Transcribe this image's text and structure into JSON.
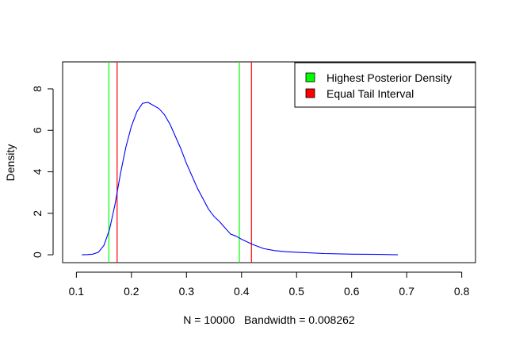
{
  "chart_data": {
    "type": "line",
    "title": "",
    "xlabel": "N = 10000   Bandwidth = 0.008262",
    "ylabel": "Density",
    "xlim": [
      0.075,
      0.825
    ],
    "ylim": [
      -0.38,
      9.3
    ],
    "xticks": [
      0.1,
      0.2,
      0.3,
      0.4,
      0.5,
      0.6,
      0.7,
      0.8
    ],
    "xtick_labels": [
      "0.1",
      "0.2",
      "0.3",
      "0.4",
      "0.5",
      "0.6",
      "0.7",
      "0.8"
    ],
    "yticks": [
      0,
      2,
      4,
      6,
      8
    ],
    "ytick_labels": [
      "0",
      "2",
      "4",
      "6",
      "8"
    ],
    "grid": false,
    "legend_position": "top-right",
    "series": [
      {
        "color": "#0000ff",
        "x": [
          0.11,
          0.12,
          0.13,
          0.14,
          0.15,
          0.16,
          0.17,
          0.18,
          0.19,
          0.2,
          0.21,
          0.22,
          0.23,
          0.24,
          0.25,
          0.26,
          0.27,
          0.28,
          0.29,
          0.3,
          0.31,
          0.32,
          0.33,
          0.34,
          0.35,
          0.36,
          0.37,
          0.38,
          0.39,
          0.4,
          0.42,
          0.44,
          0.46,
          0.48,
          0.5,
          0.55,
          0.6,
          0.65,
          0.684
        ],
        "y": [
          0.0,
          0.01,
          0.03,
          0.12,
          0.45,
          1.2,
          2.4,
          3.9,
          5.2,
          6.2,
          6.9,
          7.3,
          7.35,
          7.2,
          7.05,
          6.75,
          6.3,
          5.7,
          5.1,
          4.4,
          3.8,
          3.2,
          2.7,
          2.2,
          1.85,
          1.6,
          1.3,
          1.0,
          0.9,
          0.75,
          0.5,
          0.3,
          0.2,
          0.15,
          0.12,
          0.06,
          0.03,
          0.02,
          0.0
        ]
      }
    ],
    "vlines": [
      {
        "x": 0.159,
        "color": "#00ff00",
        "interval": "Highest Posterior Density"
      },
      {
        "x": 0.396,
        "color": "#00ff00",
        "interval": "Highest Posterior Density"
      },
      {
        "x": 0.174,
        "color": "#ff0000",
        "interval": "Equal Tail Interval"
      },
      {
        "x": 0.418,
        "color": "#ff0000",
        "interval": "Equal Tail Interval"
      }
    ],
    "legend": [
      {
        "label": "Highest Posterior Density",
        "color": "#00ff00"
      },
      {
        "label": "Equal Tail Interval",
        "color": "#ff0000"
      }
    ]
  }
}
